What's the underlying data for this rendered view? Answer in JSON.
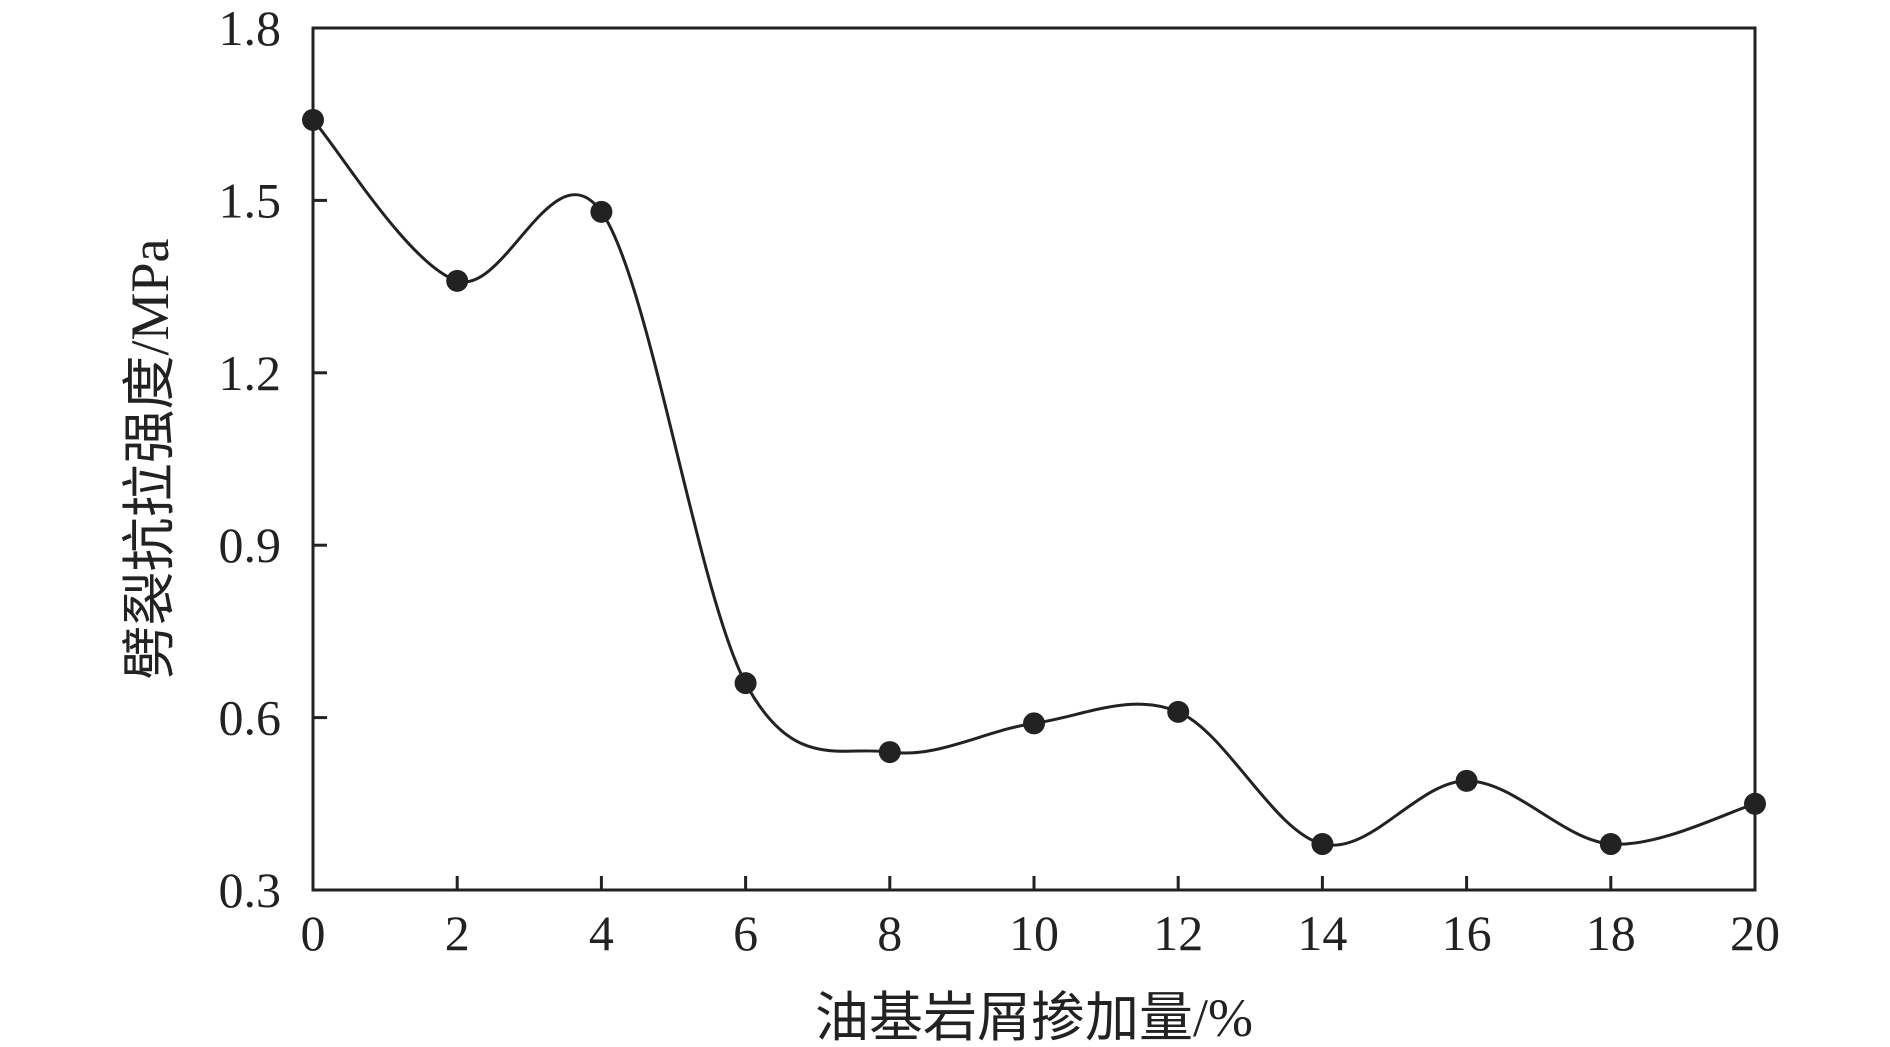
{
  "chart_data": {
    "type": "line",
    "smooth": true,
    "title": "",
    "xlabel": "油基岩屑掺加量/%",
    "ylabel": "劈裂抗拉强度/MPa",
    "xlim": [
      0,
      20
    ],
    "ylim": [
      0.3,
      1.8
    ],
    "xticks": [
      0,
      2,
      4,
      6,
      8,
      10,
      12,
      14,
      16,
      18,
      20
    ],
    "yticks": [
      0.3,
      0.6,
      0.9,
      1.2,
      1.5,
      1.8
    ],
    "ytick_labels": [
      "0.3",
      "0.6",
      "0.9",
      "1.2",
      "1.5",
      "1.8"
    ],
    "grid": false,
    "legend": "none",
    "series": [
      {
        "x": [
          0,
          2,
          4,
          6,
          8,
          10,
          12,
          14,
          16,
          18,
          20
        ],
        "y": [
          1.64,
          1.36,
          1.48,
          0.66,
          0.54,
          0.59,
          0.61,
          0.38,
          0.49,
          0.38,
          0.45
        ],
        "color": "#222222",
        "marker": "circle"
      }
    ]
  }
}
